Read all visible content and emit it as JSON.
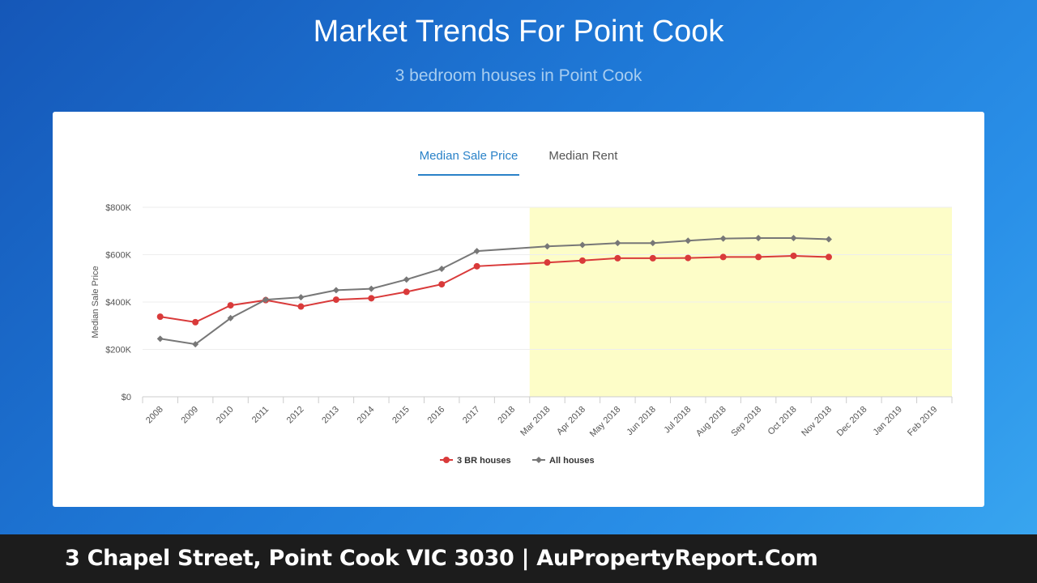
{
  "header": {
    "title": "Market Trends For Point Cook",
    "subtitle": "3 bedroom houses in Point Cook"
  },
  "tabs": [
    {
      "label": "Median Sale Price",
      "active": true
    },
    {
      "label": "Median Rent",
      "active": false
    }
  ],
  "footer": {
    "text": "3 Chapel Street, Point Cook VIC 3030 | AuPropertyReport.Com"
  },
  "colors": {
    "series_3br": "#d93a3a",
    "series_all": "#777777",
    "highlight": "#fdfdc8",
    "accent": "#2a82c8"
  },
  "chart_data": {
    "type": "line",
    "ylabel": "Median Sale Price",
    "xlabel": "",
    "ylim": [
      0,
      800000
    ],
    "y_ticks": [
      0,
      200000,
      400000,
      600000,
      800000
    ],
    "y_tick_labels": [
      "$0",
      "$200K",
      "$400K",
      "$600K",
      "$800K"
    ],
    "categories": [
      "2008",
      "2009",
      "2010",
      "2011",
      "2012",
      "2013",
      "2014",
      "2015",
      "2016",
      "2017",
      "2018",
      "Mar 2018",
      "Apr 2018",
      "May 2018",
      "Jun 2018",
      "Jul 2018",
      "Aug 2018",
      "Sep 2018",
      "Oct 2018",
      "Nov 2018",
      "Dec 2018",
      "Jan 2019",
      "Feb 2019"
    ],
    "highlight_range": [
      "Mar 2018",
      "Feb 2019"
    ],
    "grid": true,
    "legend": "bottom-center",
    "series": [
      {
        "name": "3 BR houses",
        "color": "#d93a3a",
        "marker": "circle",
        "values": [
          338000,
          315000,
          386000,
          408000,
          381000,
          410000,
          416000,
          443000,
          475000,
          551000,
          null,
          567000,
          575000,
          585000,
          585000,
          586000,
          590000,
          590000,
          595000,
          590000,
          null,
          null,
          null
        ]
      },
      {
        "name": "All houses",
        "color": "#777777",
        "marker": "diamond",
        "values": [
          245000,
          222000,
          332000,
          410000,
          420000,
          450000,
          456000,
          495000,
          540000,
          615000,
          null,
          635000,
          641000,
          649000,
          649000,
          659000,
          668000,
          670000,
          670000,
          665000,
          null,
          null,
          null
        ]
      }
    ]
  }
}
